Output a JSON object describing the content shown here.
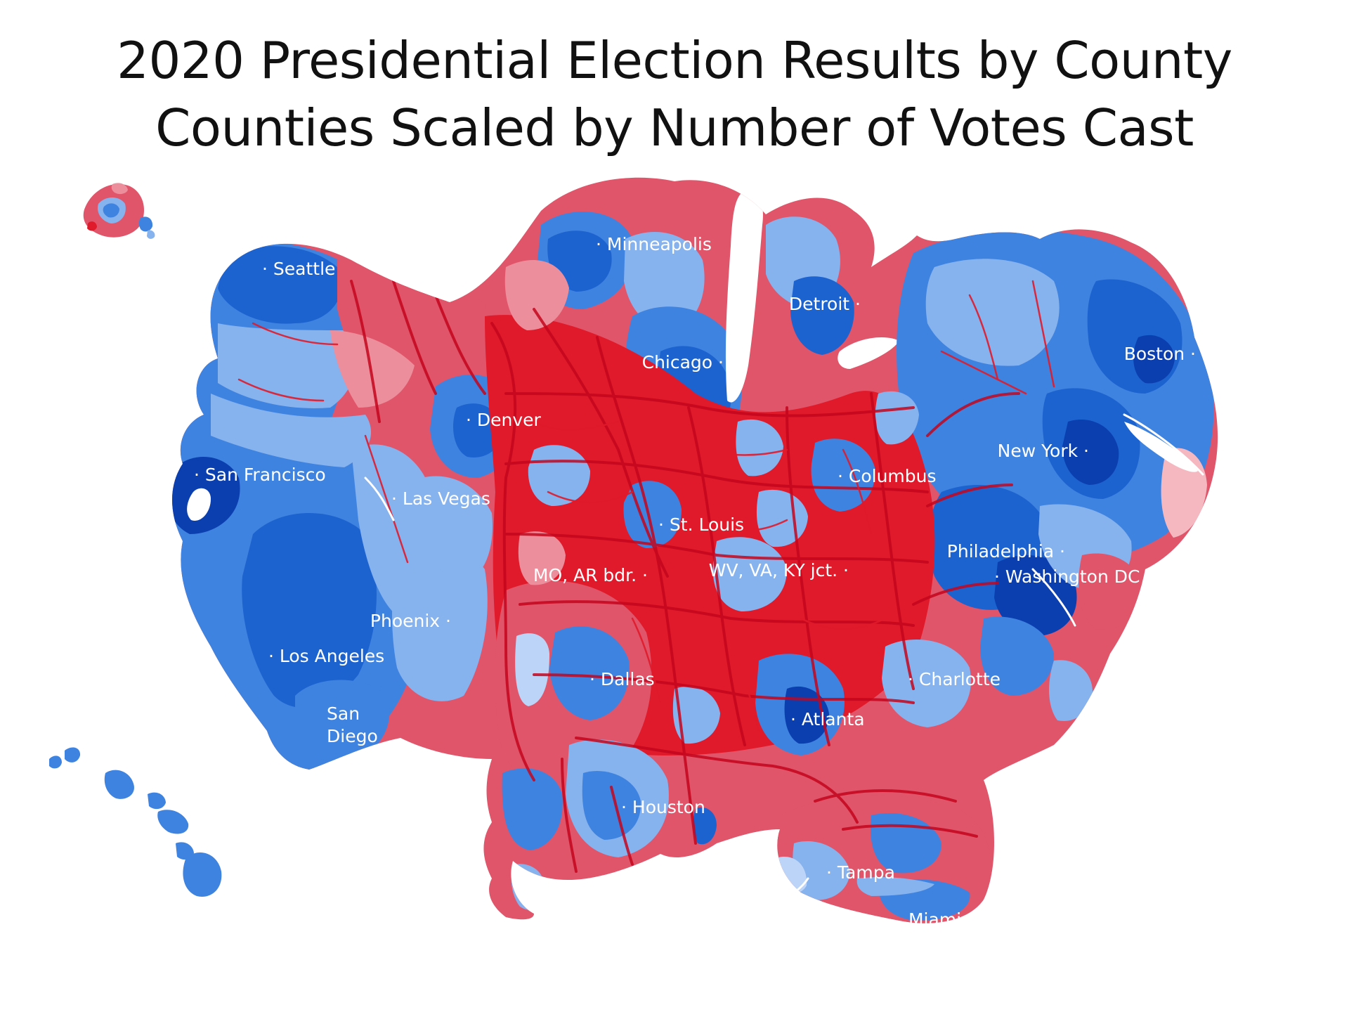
{
  "title": {
    "line1": "2020 Presidential Election Results by County",
    "line2": "Counties Scaled by Number of Votes Cast"
  },
  "colors": {
    "background": "#ffffff",
    "dem_dark": "#0b3fb0",
    "dem": "#1c63d0",
    "dem_mid": "#3f83e0",
    "dem_light": "#86b2ee",
    "dem_pale": "#bcd4f7",
    "rep_dark": "#c4061e",
    "rep": "#e01a2a",
    "rep_mid": "#e0556a",
    "rep_light": "#ec8e9c",
    "rep_pale": "#f5b8c1"
  },
  "cities": [
    {
      "name": "Seattle"
    },
    {
      "name": "Minneapolis"
    },
    {
      "name": "Detroit"
    },
    {
      "name": "Boston"
    },
    {
      "name": "Chicago"
    },
    {
      "name": "Denver"
    },
    {
      "name": "New York"
    },
    {
      "name": "San Francisco"
    },
    {
      "name": "Columbus"
    },
    {
      "name": "Las Vegas"
    },
    {
      "name": "St. Louis"
    },
    {
      "name": "Philadelphia"
    },
    {
      "name": "MO, AR bdr."
    },
    {
      "name": "WV, VA, KY jct."
    },
    {
      "name": "Washington DC"
    },
    {
      "name": "Phoenix"
    },
    {
      "name": "Los Angeles"
    },
    {
      "name": "Dallas"
    },
    {
      "name": "Charlotte"
    },
    {
      "name": "San"
    },
    {
      "name": "Diego"
    },
    {
      "name": "Atlanta"
    },
    {
      "name": "Houston"
    },
    {
      "name": "Tampa"
    },
    {
      "name": "Miami"
    }
  ]
}
